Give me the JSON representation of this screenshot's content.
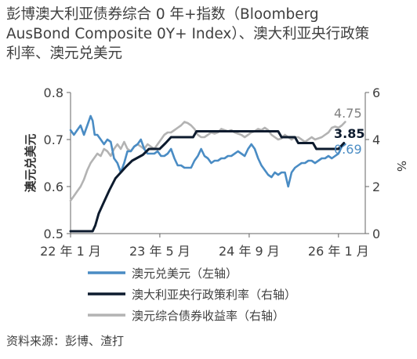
{
  "title_lines": [
    "彭博澳大利亚债券综合 0 年+指数（Bloomberg",
    "AusBond Composite 0Y+ Index）、澳大利亚央行政策",
    "利率、澳元兑美元"
  ],
  "source": "资料来源：彭博、渣打",
  "chart_data": {
    "type": "line",
    "y_left": {
      "label": "澳元兑美元",
      "ticks": [
        "0.5",
        "0.6",
        "0.7",
        "0.8"
      ],
      "range": [
        0.5,
        0.8
      ]
    },
    "y_right": {
      "label": "%",
      "ticks": [
        "0",
        "2",
        "4",
        "6"
      ],
      "range": [
        0,
        6
      ]
    },
    "x_ticks": [
      {
        "label": "22 年 1 月",
        "x": 2022.0
      },
      {
        "label": "23 年 5 月",
        "x": 2023.333
      },
      {
        "label": "24 年 9 月",
        "x": 2024.667
      },
      {
        "label": "26 年 1 月",
        "x": 2026.0
      }
    ],
    "x_range": [
      2022.0,
      2026.4
    ],
    "series": [
      {
        "name": "澳元兑美元（左轴）",
        "axis": "left",
        "color": "#4a8cc4",
        "end_label": "0.69",
        "points": [
          [
            2022.0,
            0.72
          ],
          [
            2022.05,
            0.71
          ],
          [
            2022.1,
            0.72
          ],
          [
            2022.15,
            0.73
          ],
          [
            2022.2,
            0.71
          ],
          [
            2022.25,
            0.73
          ],
          [
            2022.3,
            0.75
          ],
          [
            2022.33,
            0.74
          ],
          [
            2022.36,
            0.71
          ],
          [
            2022.4,
            0.71
          ],
          [
            2022.45,
            0.7
          ],
          [
            2022.5,
            0.69
          ],
          [
            2022.55,
            0.7
          ],
          [
            2022.6,
            0.695
          ],
          [
            2022.65,
            0.66
          ],
          [
            2022.7,
            0.65
          ],
          [
            2022.75,
            0.63
          ],
          [
            2022.8,
            0.65
          ],
          [
            2022.85,
            0.675
          ],
          [
            2022.9,
            0.675
          ],
          [
            2022.95,
            0.685
          ],
          [
            2023.0,
            0.69
          ],
          [
            2023.05,
            0.7
          ],
          [
            2023.1,
            0.68
          ],
          [
            2023.15,
            0.67
          ],
          [
            2023.2,
            0.67
          ],
          [
            2023.25,
            0.67
          ],
          [
            2023.3,
            0.675
          ],
          [
            2023.35,
            0.665
          ],
          [
            2023.4,
            0.665
          ],
          [
            2023.45,
            0.67
          ],
          [
            2023.5,
            0.68
          ],
          [
            2023.55,
            0.66
          ],
          [
            2023.6,
            0.645
          ],
          [
            2023.65,
            0.645
          ],
          [
            2023.7,
            0.64
          ],
          [
            2023.75,
            0.64
          ],
          [
            2023.8,
            0.64
          ],
          [
            2023.85,
            0.655
          ],
          [
            2023.9,
            0.665
          ],
          [
            2023.95,
            0.68
          ],
          [
            2024.0,
            0.665
          ],
          [
            2024.05,
            0.66
          ],
          [
            2024.1,
            0.65
          ],
          [
            2024.15,
            0.655
          ],
          [
            2024.2,
            0.655
          ],
          [
            2024.25,
            0.66
          ],
          [
            2024.3,
            0.66
          ],
          [
            2024.35,
            0.665
          ],
          [
            2024.4,
            0.665
          ],
          [
            2024.45,
            0.67
          ],
          [
            2024.5,
            0.675
          ],
          [
            2024.55,
            0.67
          ],
          [
            2024.6,
            0.665
          ],
          [
            2024.65,
            0.68
          ],
          [
            2024.7,
            0.69
          ],
          [
            2024.75,
            0.68
          ],
          [
            2024.8,
            0.66
          ],
          [
            2024.85,
            0.645
          ],
          [
            2024.9,
            0.635
          ],
          [
            2024.95,
            0.625
          ],
          [
            2025.0,
            0.62
          ],
          [
            2025.05,
            0.63
          ],
          [
            2025.1,
            0.625
          ],
          [
            2025.15,
            0.63
          ],
          [
            2025.2,
            0.63
          ],
          [
            2025.25,
            0.6
          ],
          [
            2025.3,
            0.63
          ],
          [
            2025.35,
            0.64
          ],
          [
            2025.4,
            0.645
          ],
          [
            2025.45,
            0.65
          ],
          [
            2025.5,
            0.65
          ],
          [
            2025.55,
            0.655
          ],
          [
            2025.6,
            0.655
          ],
          [
            2025.65,
            0.65
          ],
          [
            2025.7,
            0.655
          ],
          [
            2025.75,
            0.66
          ],
          [
            2025.8,
            0.66
          ],
          [
            2025.85,
            0.665
          ],
          [
            2025.9,
            0.66
          ],
          [
            2025.95,
            0.665
          ],
          [
            2026.0,
            0.67
          ],
          [
            2026.05,
            0.685
          ],
          [
            2026.1,
            0.69
          ]
        ]
      },
      {
        "name": "澳大利亚央行政策利率（右轴）",
        "axis": "right",
        "color": "#0d1b2e",
        "end_label": "3.85",
        "points": [
          [
            2022.0,
            0.1
          ],
          [
            2022.33,
            0.1
          ],
          [
            2022.37,
            0.35
          ],
          [
            2022.42,
            0.85
          ],
          [
            2022.5,
            1.35
          ],
          [
            2022.58,
            1.85
          ],
          [
            2022.67,
            2.35
          ],
          [
            2022.75,
            2.6
          ],
          [
            2022.83,
            2.85
          ],
          [
            2022.92,
            3.1
          ],
          [
            2023.08,
            3.35
          ],
          [
            2023.17,
            3.6
          ],
          [
            2023.33,
            3.6
          ],
          [
            2023.42,
            3.85
          ],
          [
            2023.5,
            4.1
          ],
          [
            2023.83,
            4.1
          ],
          [
            2023.88,
            4.35
          ],
          [
            2025.1,
            4.35
          ],
          [
            2025.15,
            4.1
          ],
          [
            2025.35,
            4.1
          ],
          [
            2025.4,
            3.85
          ],
          [
            2025.62,
            3.85
          ],
          [
            2025.67,
            3.6
          ],
          [
            2026.0,
            3.6
          ],
          [
            2026.08,
            3.85
          ]
        ]
      },
      {
        "name": "澳元综合债券收益率（右轴）",
        "axis": "right",
        "color": "#b3b3b3",
        "end_label": "4.75",
        "points": [
          [
            2022.0,
            1.4
          ],
          [
            2022.05,
            1.6
          ],
          [
            2022.1,
            1.8
          ],
          [
            2022.15,
            2.0
          ],
          [
            2022.2,
            2.3
          ],
          [
            2022.25,
            2.7
          ],
          [
            2022.3,
            3.0
          ],
          [
            2022.35,
            3.2
          ],
          [
            2022.4,
            3.4
          ],
          [
            2022.45,
            3.3
          ],
          [
            2022.5,
            3.6
          ],
          [
            2022.55,
            3.5
          ],
          [
            2022.6,
            3.3
          ],
          [
            2022.65,
            3.6
          ],
          [
            2022.7,
            3.8
          ],
          [
            2022.75,
            3.6
          ],
          [
            2022.8,
            3.9
          ],
          [
            2022.85,
            3.6
          ],
          [
            2022.9,
            3.5
          ],
          [
            2022.95,
            3.7
          ],
          [
            2023.0,
            3.8
          ],
          [
            2023.05,
            3.7
          ],
          [
            2023.1,
            3.6
          ],
          [
            2023.15,
            3.8
          ],
          [
            2023.2,
            3.7
          ],
          [
            2023.25,
            3.6
          ],
          [
            2023.3,
            3.8
          ],
          [
            2023.35,
            4.0
          ],
          [
            2023.4,
            4.2
          ],
          [
            2023.45,
            4.3
          ],
          [
            2023.5,
            4.3
          ],
          [
            2023.55,
            4.4
          ],
          [
            2023.6,
            4.5
          ],
          [
            2023.65,
            4.6
          ],
          [
            2023.7,
            4.75
          ],
          [
            2023.75,
            4.7
          ],
          [
            2023.8,
            4.6
          ],
          [
            2023.85,
            4.45
          ],
          [
            2023.9,
            4.2
          ],
          [
            2023.95,
            4.1
          ],
          [
            2024.0,
            4.1
          ],
          [
            2024.05,
            4.2
          ],
          [
            2024.1,
            4.3
          ],
          [
            2024.15,
            4.25
          ],
          [
            2024.2,
            4.3
          ],
          [
            2024.25,
            4.45
          ],
          [
            2024.3,
            4.4
          ],
          [
            2024.35,
            4.35
          ],
          [
            2024.4,
            4.4
          ],
          [
            2024.45,
            4.3
          ],
          [
            2024.5,
            4.25
          ],
          [
            2024.55,
            4.2
          ],
          [
            2024.6,
            4.1
          ],
          [
            2024.65,
            4.2
          ],
          [
            2024.7,
            4.3
          ],
          [
            2024.75,
            4.35
          ],
          [
            2024.8,
            4.45
          ],
          [
            2024.85,
            4.4
          ],
          [
            2024.9,
            4.5
          ],
          [
            2024.95,
            4.4
          ],
          [
            2025.0,
            4.2
          ],
          [
            2025.05,
            4.1
          ],
          [
            2025.1,
            4.0
          ],
          [
            2025.15,
            4.05
          ],
          [
            2025.2,
            4.2
          ],
          [
            2025.25,
            4.1
          ],
          [
            2025.3,
            4.0
          ],
          [
            2025.35,
            4.1
          ],
          [
            2025.4,
            4.1
          ],
          [
            2025.45,
            4.0
          ],
          [
            2025.5,
            3.9
          ],
          [
            2025.55,
            4.0
          ],
          [
            2025.6,
            4.1
          ],
          [
            2025.65,
            4.0
          ],
          [
            2025.7,
            4.05
          ],
          [
            2025.75,
            4.1
          ],
          [
            2025.8,
            4.2
          ],
          [
            2025.85,
            4.3
          ],
          [
            2025.9,
            4.5
          ],
          [
            2025.95,
            4.55
          ],
          [
            2026.0,
            4.5
          ],
          [
            2026.05,
            4.6
          ],
          [
            2026.1,
            4.75
          ]
        ]
      }
    ]
  }
}
